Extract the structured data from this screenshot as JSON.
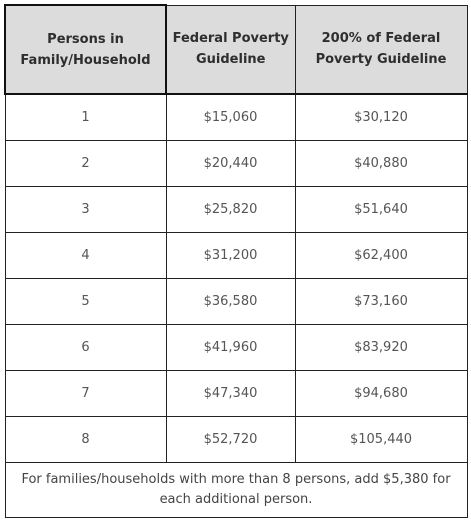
{
  "headers": {
    "persons": "Persons in Family/Household",
    "guideline": "Federal Poverty Guideline",
    "double": "200% of Federal Poverty Guideline"
  },
  "rows": [
    {
      "persons": "1",
      "guideline": "$15,060",
      "double": "$30,120"
    },
    {
      "persons": "2",
      "guideline": "$20,440",
      "double": "$40,880"
    },
    {
      "persons": "3",
      "guideline": "$25,820",
      "double": "$51,640"
    },
    {
      "persons": "4",
      "guideline": "$31,200",
      "double": "$62,400"
    },
    {
      "persons": "5",
      "guideline": "$36,580",
      "double": "$73,160"
    },
    {
      "persons": "6",
      "guideline": "$41,960",
      "double": "$83,920"
    },
    {
      "persons": "7",
      "guideline": "$47,340",
      "double": "$94,680"
    },
    {
      "persons": "8",
      "guideline": "$52,720",
      "double": "$105,440"
    }
  ],
  "footnote": "For families/households with more than 8 persons, add $5,380 for each additional person."
}
